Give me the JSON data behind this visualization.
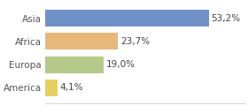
{
  "categories": [
    "America",
    "Europa",
    "Africa",
    "Asia"
  ],
  "values": [
    4.1,
    19.0,
    23.7,
    53.2
  ],
  "labels": [
    "4,1%",
    "19,0%",
    "23,7%",
    "53,2%"
  ],
  "bar_colors": [
    "#e8d060",
    "#b5c98a",
    "#e8b87a",
    "#7090c8"
  ],
  "background_color": "#ffffff",
  "xlim": [
    0,
    65
  ],
  "bar_height": 0.72,
  "label_fontsize": 7.5,
  "tick_fontsize": 7.5
}
